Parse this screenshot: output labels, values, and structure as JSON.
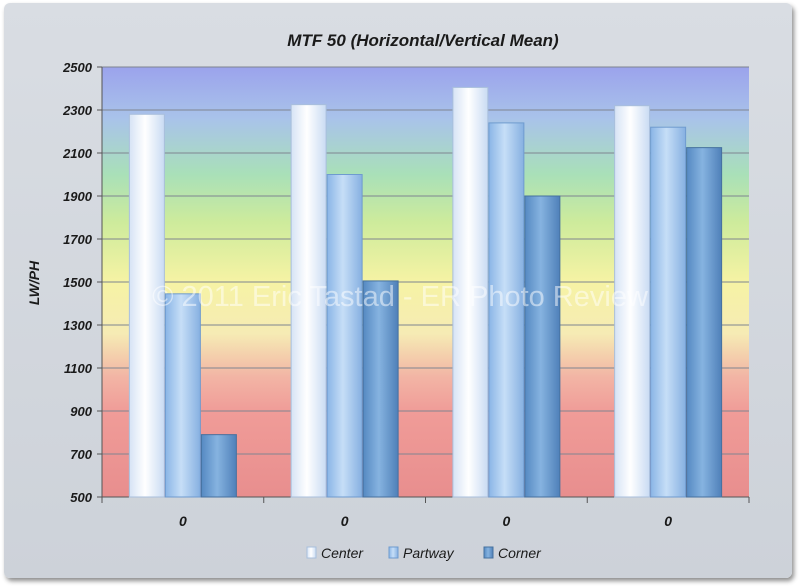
{
  "chart_data": {
    "type": "bar",
    "title": "MTF 50 (Horizontal/Vertical Mean)",
    "xlabel": "",
    "ylabel": "LW/PH",
    "ylim": [
      500,
      2500
    ],
    "yticks": [
      500,
      700,
      900,
      1100,
      1300,
      1500,
      1700,
      1900,
      2100,
      2300,
      2500
    ],
    "categories": [
      "0",
      "0",
      "0",
      "0"
    ],
    "series": [
      {
        "name": "Center",
        "values": [
          2280,
          2325,
          2405,
          2320
        ]
      },
      {
        "name": "Partway",
        "values": [
          1445,
          2000,
          2240,
          2220
        ]
      },
      {
        "name": "Corner",
        "values": [
          790,
          1505,
          1900,
          2125
        ]
      }
    ],
    "grid": true,
    "legend": "bottom",
    "watermark": "© 2011 Eric Tastad - ER Photo Review",
    "colors": {
      "Center": "#e4edf9",
      "Partway": "#a9cbef",
      "Corner": "#6b9fd2",
      "band_top": "#9aa4ea",
      "band_middle": "#f7f3b2",
      "band_bottom": "#eb8e8e"
    }
  }
}
